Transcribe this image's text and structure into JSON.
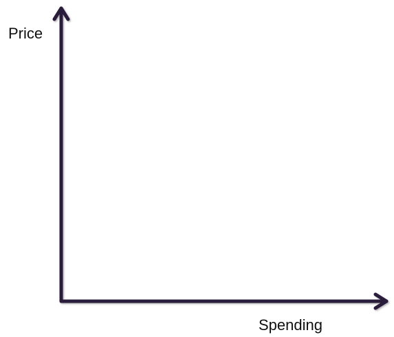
{
  "chart_data": {
    "type": "line",
    "title": "",
    "xlabel": "Spending",
    "ylabel": "Price",
    "series": [],
    "grid": false,
    "legend": "none",
    "axis_color": "#2b1a3a"
  }
}
